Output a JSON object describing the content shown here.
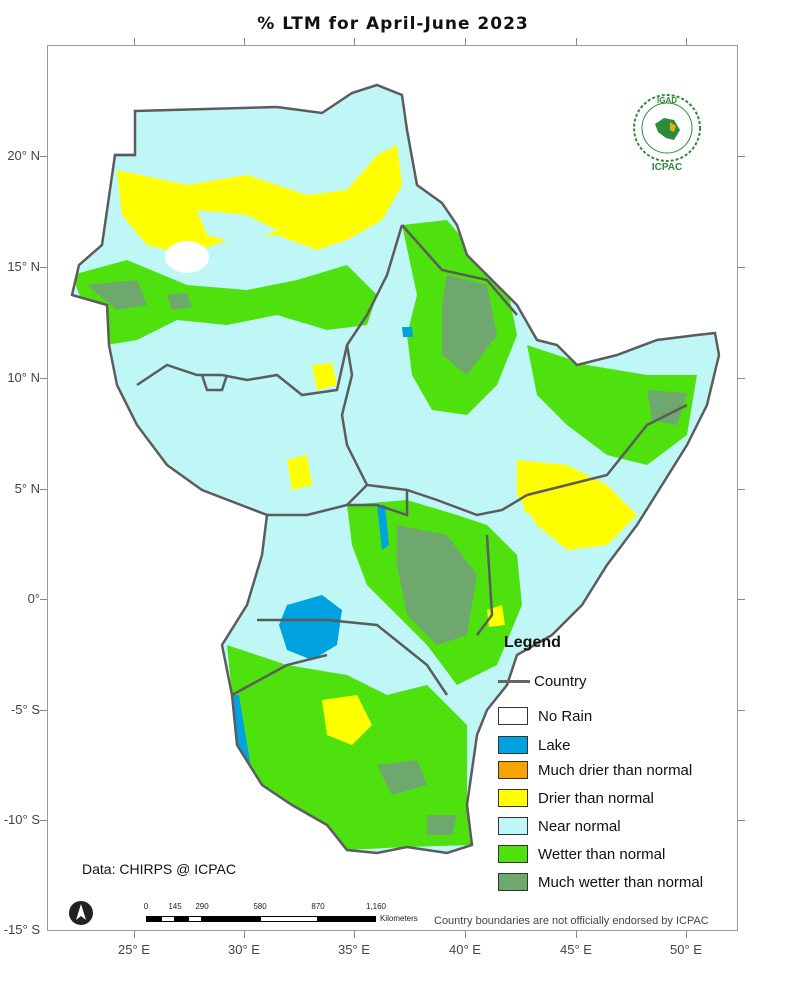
{
  "title": "% LTM   for   April-June  2023",
  "lat_labels": [
    "20° N",
    "15° N",
    "10° N",
    "5° N",
    "0°",
    "-5° S",
    "-10° S",
    "-15° S"
  ],
  "lon_labels": [
    "25° E",
    "30° E",
    "35° E",
    "40° E",
    "45° E",
    "50° E"
  ],
  "legend": {
    "title": "Legend",
    "country": "Country",
    "items": [
      {
        "label": "No Rain",
        "color": "#ffffff"
      },
      {
        "label": "Lake",
        "color": "#00a2e0"
      },
      {
        "label": "Much drier than normal",
        "color": "#f7a400"
      },
      {
        "label": "Drier than normal",
        "color": "#ffff00"
      },
      {
        "label": "Near normal",
        "color": "#bff7f7"
      },
      {
        "label": "Wetter than normal",
        "color": "#4ee10e"
      },
      {
        "label": "Much wetter than normal",
        "color": "#6fa86f"
      }
    ]
  },
  "credit": "Data: CHIRPS @ ICPAC",
  "disclaimer": "Country boundaries are not officially endorsed by ICPAC",
  "scale": {
    "ticks": [
      "0",
      "145",
      "290",
      "580",
      "870",
      "1,160"
    ],
    "unit": "Kilometers"
  },
  "logo": {
    "top": "IGAD",
    "bottom": "ICPAC"
  },
  "colors": {
    "border": "#5c5c5c",
    "near_normal": "#bff7f7",
    "wetter": "#4ee10e",
    "much_wetter": "#6fa86f",
    "drier": "#ffff00",
    "lake": "#00a2e0"
  }
}
